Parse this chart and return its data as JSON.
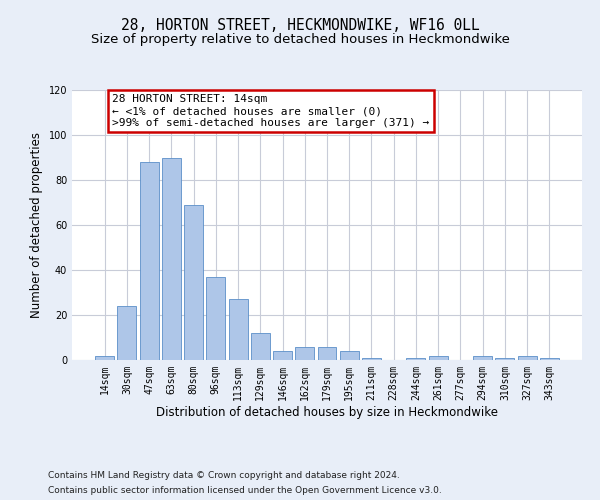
{
  "title_line1": "28, HORTON STREET, HECKMONDWIKE, WF16 0LL",
  "title_line2": "Size of property relative to detached houses in Heckmondwike",
  "xlabel": "Distribution of detached houses by size in Heckmondwike",
  "ylabel": "Number of detached properties",
  "categories": [
    "14sqm",
    "30sqm",
    "47sqm",
    "63sqm",
    "80sqm",
    "96sqm",
    "113sqm",
    "129sqm",
    "146sqm",
    "162sqm",
    "179sqm",
    "195sqm",
    "211sqm",
    "228sqm",
    "244sqm",
    "261sqm",
    "277sqm",
    "294sqm",
    "310sqm",
    "327sqm",
    "343sqm"
  ],
  "values": [
    2,
    24,
    88,
    90,
    69,
    37,
    27,
    12,
    4,
    6,
    6,
    4,
    1,
    0,
    1,
    2,
    0,
    2,
    1,
    2,
    1
  ],
  "bar_color": "#aec6e8",
  "bar_edge_color": "#5b8fc9",
  "annotation_line1": "28 HORTON STREET: 14sqm",
  "annotation_line2": "← <1% of detached houses are smaller (0)",
  "annotation_line3": ">99% of semi-detached houses are larger (371) →",
  "annotation_box_color": "#ffffff",
  "annotation_box_edge_color": "#cc0000",
  "ylim": [
    0,
    120
  ],
  "yticks": [
    0,
    20,
    40,
    60,
    80,
    100,
    120
  ],
  "footer_line1": "Contains HM Land Registry data © Crown copyright and database right 2024.",
  "footer_line2": "Contains public sector information licensed under the Open Government Licence v3.0.",
  "background_color": "#e8eef8",
  "plot_background_color": "#ffffff",
  "grid_color": "#c8ccd8",
  "title_fontsize": 10.5,
  "subtitle_fontsize": 9.5,
  "axis_label_fontsize": 8.5,
  "tick_fontsize": 7,
  "footer_fontsize": 6.5,
  "annotation_fontsize": 8
}
